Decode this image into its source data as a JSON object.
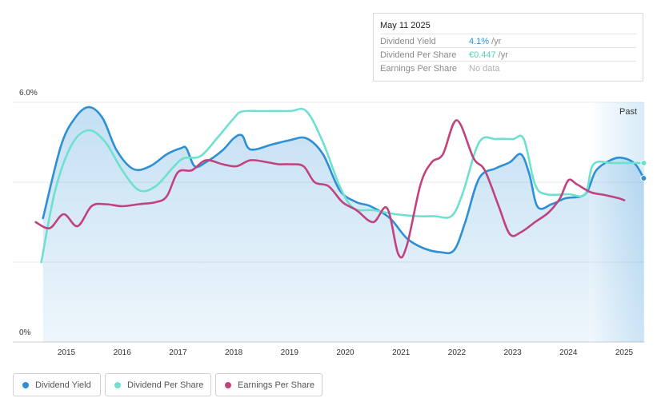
{
  "tooltip": {
    "date": "May 11 2025",
    "rows": [
      {
        "label": "Dividend Yield",
        "value": "4.1%",
        "unit": "/yr",
        "color": "#2d8fd5"
      },
      {
        "label": "Dividend Per Share",
        "value": "€0.447",
        "unit": "/yr",
        "color": "#6ee0cf"
      },
      {
        "label": "Earnings Per Share",
        "value": "No data",
        "unit": "",
        "color": "#b0b0b0"
      }
    ]
  },
  "past_label": "Past",
  "legend": [
    {
      "label": "Dividend Yield",
      "color": "#2d8fd5"
    },
    {
      "label": "Dividend Per Share",
      "color": "#6ee0cf"
    },
    {
      "label": "Earnings Per Share",
      "color": "#c0427e"
    }
  ],
  "chart_data": {
    "type": "line",
    "y_ticks": [
      "6.0%",
      "0%"
    ],
    "ylim": [
      0,
      6.0
    ],
    "x_ticks": [
      "2015",
      "2016",
      "2017",
      "2018",
      "2019",
      "2020",
      "2021",
      "2022",
      "2023",
      "2024",
      "2025"
    ],
    "xlim": [
      2014.5,
      2025.35
    ],
    "forecast_start": 2024.37,
    "grid": true,
    "series": [
      {
        "name": "Dividend Yield",
        "color": "#2d8fd5",
        "filled": true,
        "points": [
          [
            2014.58,
            3.1
          ],
          [
            2014.9,
            4.9
          ],
          [
            2015.15,
            5.6
          ],
          [
            2015.4,
            5.88
          ],
          [
            2015.65,
            5.6
          ],
          [
            2015.9,
            4.8
          ],
          [
            2016.2,
            4.33
          ],
          [
            2016.5,
            4.4
          ],
          [
            2016.8,
            4.7
          ],
          [
            2017.05,
            4.85
          ],
          [
            2017.15,
            4.85
          ],
          [
            2017.3,
            4.4
          ],
          [
            2017.5,
            4.5
          ],
          [
            2017.8,
            4.8
          ],
          [
            2018.0,
            5.1
          ],
          [
            2018.15,
            5.17
          ],
          [
            2018.3,
            4.82
          ],
          [
            2018.7,
            4.95
          ],
          [
            2019.0,
            5.05
          ],
          [
            2019.3,
            5.1
          ],
          [
            2019.6,
            4.7
          ],
          [
            2019.9,
            3.8
          ],
          [
            2020.2,
            3.5
          ],
          [
            2020.45,
            3.4
          ],
          [
            2020.8,
            3.1
          ],
          [
            2021.1,
            2.6
          ],
          [
            2021.4,
            2.35
          ],
          [
            2021.7,
            2.25
          ],
          [
            2021.95,
            2.3
          ],
          [
            2022.15,
            3.0
          ],
          [
            2022.4,
            4.1
          ],
          [
            2022.7,
            4.35
          ],
          [
            2022.95,
            4.5
          ],
          [
            2023.15,
            4.7
          ],
          [
            2023.3,
            4.2
          ],
          [
            2023.45,
            3.38
          ],
          [
            2023.7,
            3.45
          ],
          [
            2023.95,
            3.6
          ],
          [
            2024.3,
            3.7
          ],
          [
            2024.5,
            4.3
          ],
          [
            2024.8,
            4.58
          ],
          [
            2025.0,
            4.6
          ],
          [
            2025.2,
            4.45
          ],
          [
            2025.35,
            4.1
          ]
        ]
      },
      {
        "name": "Dividend Per Share",
        "color": "#6ee0cf",
        "filled": false,
        "points": [
          [
            2014.55,
            2.0
          ],
          [
            2014.8,
            3.8
          ],
          [
            2015.1,
            4.95
          ],
          [
            2015.4,
            5.3
          ],
          [
            2015.7,
            5.0
          ],
          [
            2016.0,
            4.3
          ],
          [
            2016.3,
            3.8
          ],
          [
            2016.6,
            3.9
          ],
          [
            2016.9,
            4.35
          ],
          [
            2017.1,
            4.6
          ],
          [
            2017.4,
            4.65
          ],
          [
            2017.7,
            5.1
          ],
          [
            2018.0,
            5.6
          ],
          [
            2018.15,
            5.77
          ],
          [
            2018.5,
            5.78
          ],
          [
            2019.0,
            5.78
          ],
          [
            2019.3,
            5.78
          ],
          [
            2019.6,
            5.0
          ],
          [
            2019.9,
            3.9
          ],
          [
            2020.15,
            3.35
          ],
          [
            2020.5,
            3.3
          ],
          [
            2020.9,
            3.2
          ],
          [
            2021.3,
            3.15
          ],
          [
            2021.6,
            3.15
          ],
          [
            2021.9,
            3.15
          ],
          [
            2022.1,
            3.7
          ],
          [
            2022.4,
            5.0
          ],
          [
            2022.7,
            5.08
          ],
          [
            2023.0,
            5.08
          ],
          [
            2023.2,
            5.08
          ],
          [
            2023.4,
            3.95
          ],
          [
            2023.6,
            3.7
          ],
          [
            2024.0,
            3.7
          ],
          [
            2024.3,
            3.7
          ],
          [
            2024.45,
            4.45
          ],
          [
            2024.8,
            4.48
          ],
          [
            2025.2,
            4.48
          ],
          [
            2025.35,
            4.48
          ]
        ]
      },
      {
        "name": "Earnings Per Share",
        "color": "#c0427e",
        "filled": false,
        "points": [
          [
            2014.45,
            3.0
          ],
          [
            2014.7,
            2.85
          ],
          [
            2014.95,
            3.2
          ],
          [
            2015.2,
            2.9
          ],
          [
            2015.45,
            3.4
          ],
          [
            2015.7,
            3.45
          ],
          [
            2016.0,
            3.4
          ],
          [
            2016.3,
            3.45
          ],
          [
            2016.6,
            3.5
          ],
          [
            2016.8,
            3.65
          ],
          [
            2017.0,
            4.25
          ],
          [
            2017.25,
            4.3
          ],
          [
            2017.5,
            4.55
          ],
          [
            2017.8,
            4.45
          ],
          [
            2018.05,
            4.4
          ],
          [
            2018.3,
            4.55
          ],
          [
            2018.6,
            4.5
          ],
          [
            2018.8,
            4.45
          ],
          [
            2019.0,
            4.45
          ],
          [
            2019.25,
            4.4
          ],
          [
            2019.45,
            4.0
          ],
          [
            2019.7,
            3.9
          ],
          [
            2019.95,
            3.5
          ],
          [
            2020.2,
            3.3
          ],
          [
            2020.5,
            3.0
          ],
          [
            2020.75,
            3.35
          ],
          [
            2020.95,
            2.2
          ],
          [
            2021.1,
            2.4
          ],
          [
            2021.35,
            3.95
          ],
          [
            2021.55,
            4.5
          ],
          [
            2021.75,
            4.7
          ],
          [
            2022.0,
            5.55
          ],
          [
            2022.3,
            4.6
          ],
          [
            2022.5,
            4.3
          ],
          [
            2022.75,
            3.4
          ],
          [
            2022.95,
            2.7
          ],
          [
            2023.15,
            2.75
          ],
          [
            2023.4,
            3.0
          ],
          [
            2023.65,
            3.25
          ],
          [
            2023.85,
            3.6
          ],
          [
            2024.0,
            4.05
          ],
          [
            2024.15,
            3.95
          ],
          [
            2024.4,
            3.75
          ],
          [
            2024.65,
            3.68
          ],
          [
            2024.9,
            3.6
          ],
          [
            2025.0,
            3.55
          ]
        ]
      }
    ]
  }
}
